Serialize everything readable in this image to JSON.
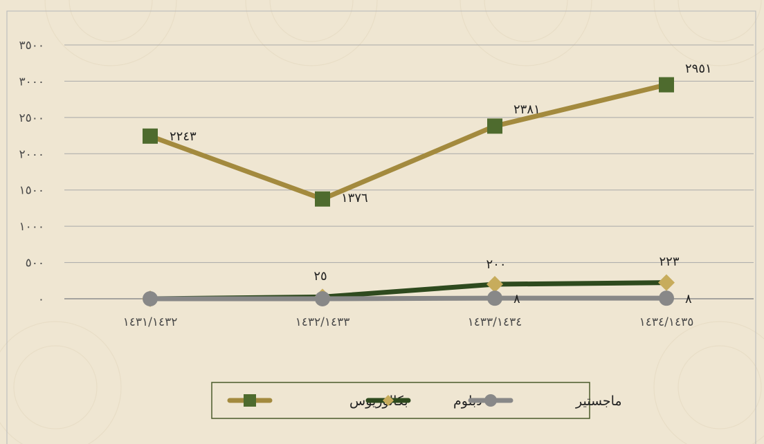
{
  "chart_data": {
    "type": "line",
    "categories": [
      "١٤٣١/١٤٣٢",
      "١٤٣٢/١٤٣٣",
      "١٤٣٣/١٤٣٤",
      "١٤٣٤/١٤٣٥"
    ],
    "y_ticks": [
      "٠",
      "٥٠٠",
      "١٠٠٠",
      "١٥٠٠",
      "٢٠٠٠",
      "٢٥٠٠",
      "٣٠٠٠",
      "٣٥٠٠"
    ],
    "ylim": [
      0,
      3500
    ],
    "grid": true,
    "legend_position": "bottom",
    "series": [
      {
        "name": "بكالوريوس",
        "values": [
          2243,
          1376,
          2381,
          2951
        ],
        "labels": [
          "٢٢٤٣",
          "١٣٧٦",
          "٢٣٨١",
          "٢٩٥١"
        ],
        "color": "#a38a3e",
        "marker_color": "#4e6b2e",
        "marker": "square"
      },
      {
        "name": "دبلوم",
        "values": [
          0,
          25,
          200,
          223
        ],
        "labels": [
          "",
          "٢٥",
          "٢٠٠",
          "٢٢٣"
        ],
        "color": "#2e4a1e",
        "marker_color": "#c7ac5c",
        "marker": "diamond"
      },
      {
        "name": "ماجستير",
        "values": [
          0,
          0,
          8,
          8
        ],
        "labels": [
          "",
          "",
          "٨",
          "٨"
        ],
        "color": "#888888",
        "marker_color": "#888888",
        "marker": "circle"
      }
    ]
  }
}
